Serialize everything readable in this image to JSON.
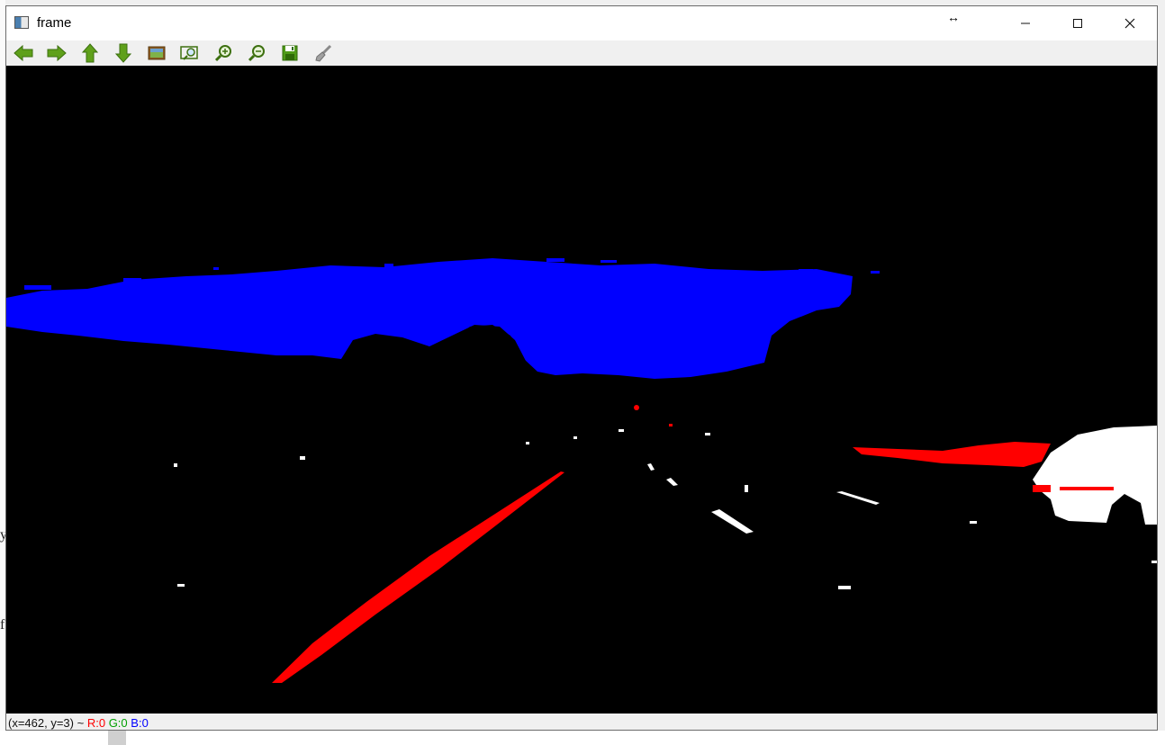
{
  "window": {
    "title": "frame",
    "resize_cursor_glyph": "↔",
    "controls": {
      "minimize": "—",
      "maximize": "☐",
      "close": "✕"
    }
  },
  "toolbar": {
    "buttons": [
      {
        "name": "pan-left",
        "icon": "arrow-left-icon"
      },
      {
        "name": "pan-right",
        "icon": "arrow-right-icon"
      },
      {
        "name": "pan-up",
        "icon": "arrow-up-icon"
      },
      {
        "name": "pan-down",
        "icon": "arrow-down-icon"
      },
      {
        "name": "zoom-original",
        "icon": "image-icon"
      },
      {
        "name": "zoom-fit",
        "icon": "zoom-fit-icon"
      },
      {
        "name": "zoom-in",
        "icon": "zoom-in-icon"
      },
      {
        "name": "zoom-out",
        "icon": "zoom-out-icon"
      },
      {
        "name": "save",
        "icon": "floppy-disk-icon"
      },
      {
        "name": "properties",
        "icon": "brush-icon"
      }
    ],
    "accent": "#5fa01a"
  },
  "image": {
    "colors": {
      "sky": "#0000ff",
      "lane": "#ff0000",
      "white": "#ffffff",
      "background": "#000000"
    }
  },
  "status": {
    "coords": "(x=462, y=3) ~",
    "r": "R:0",
    "g": "G:0",
    "b": "B:0"
  },
  "background_fragments": {
    "frag1": "y",
    "frag2": "f"
  }
}
